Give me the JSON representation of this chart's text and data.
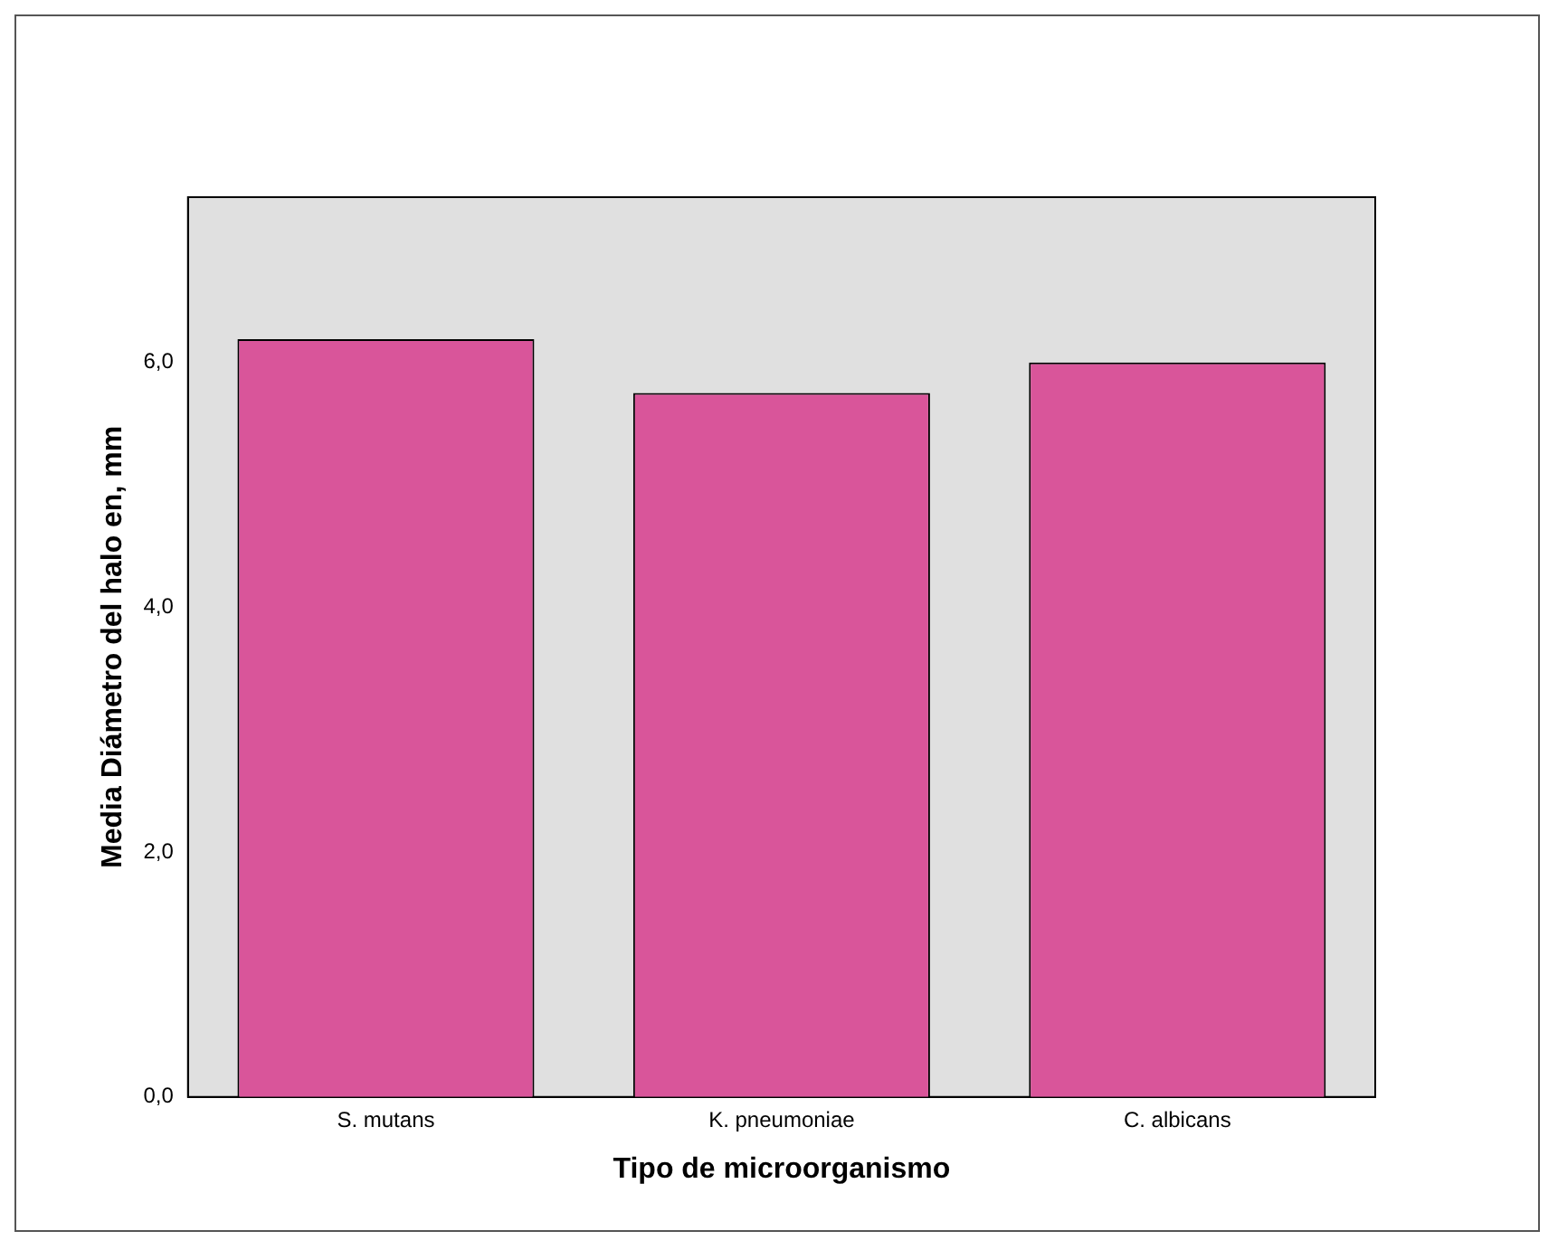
{
  "chart_data": {
    "type": "bar",
    "xlabel": "Tipo de microorganismo",
    "ylabel": "Media Diámetro del halo en, mm",
    "categories": [
      "S. mutans",
      "K. pneumoniae",
      "C. albicans"
    ],
    "values": [
      6.19,
      5.75,
      6.0
    ],
    "color": "#d9559a",
    "ylim": [
      0,
      7.35
    ],
    "yticks": [
      {
        "value": 0,
        "label": "0,0"
      },
      {
        "value": 2,
        "label": "2,0"
      },
      {
        "value": 4,
        "label": "4,0"
      },
      {
        "value": 6,
        "label": "6,0"
      }
    ],
    "grid": false,
    "legend": false
  }
}
